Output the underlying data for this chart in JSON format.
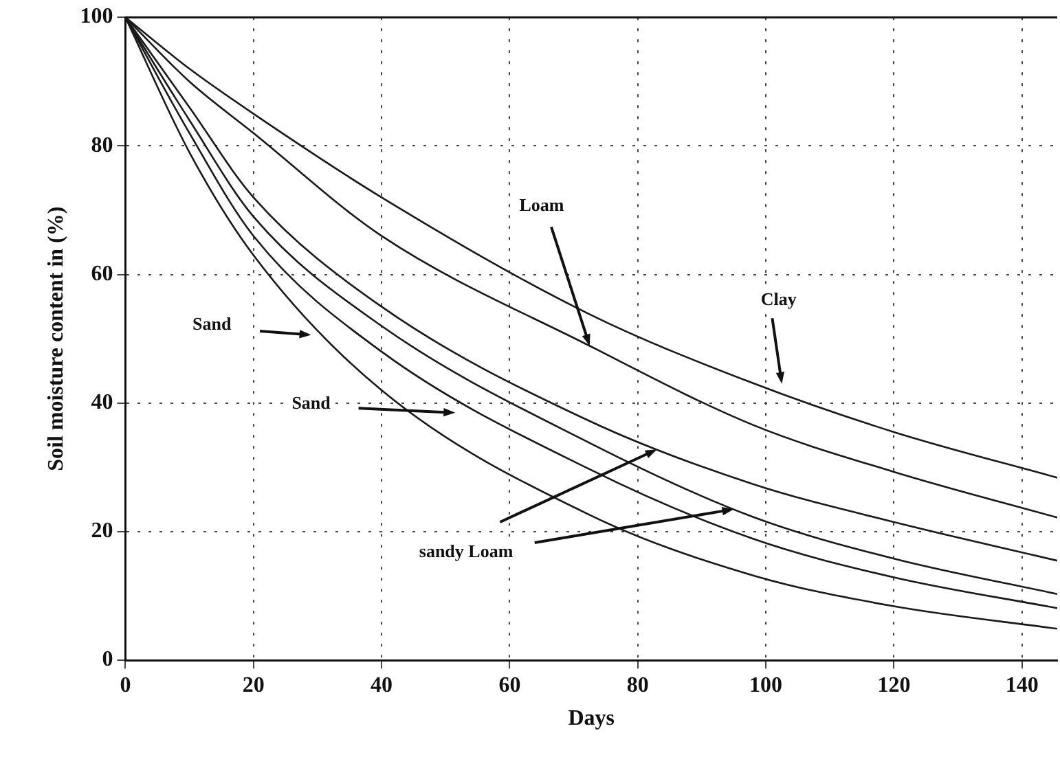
{
  "chart_data": {
    "type": "line",
    "xlabel": "Days",
    "ylabel": "Soil moisture content in (%)",
    "xlim": [
      0,
      145.5
    ],
    "xticks": [
      0,
      20,
      40,
      60,
      80,
      100,
      120,
      140
    ],
    "ylim": [
      0,
      100
    ],
    "yticks": [
      0,
      20,
      40,
      60,
      80,
      100
    ],
    "grid": true,
    "legend": false,
    "marker": "none",
    "line_style": "solid",
    "x": [
      0,
      10,
      20,
      40,
      72.5,
      98,
      120,
      145.5
    ],
    "series": [
      {
        "color": "#1a1a1a",
        "values": [
          100,
          92,
          85,
          72,
          53.8,
          43.1,
          35.5,
          28.4
        ]
      },
      {
        "color": "#1a1a1a",
        "values": [
          100,
          90,
          82,
          66,
          48.9,
          36.6,
          29.3,
          22.2
        ]
      },
      {
        "color": "#1a1a1a",
        "values": [
          100,
          86,
          72,
          55,
          37.2,
          27.4,
          21.5,
          15.5
        ]
      },
      {
        "color": "#1a1a1a",
        "values": [
          100,
          84,
          69,
          52,
          33.8,
          22.3,
          15.8,
          10.3
        ]
      },
      {
        "color": "#1a1a1a",
        "values": [
          100,
          82,
          66,
          48,
          29.7,
          18.9,
          12.9,
          8.1
        ]
      },
      {
        "color": "#1a1a1a",
        "values": [
          100,
          79,
          63,
          42,
          22.6,
          13.2,
          8.4,
          4.9
        ]
      }
    ],
    "annotations": [
      "Sand",
      "Sand",
      {
        "text": "Loam",
        "x": 72.5,
        "y": 48.9
      },
      "Clay",
      {
        "text": "sandy Loam",
        "x": 83,
        "y": 32.8
      }
    ]
  }
}
